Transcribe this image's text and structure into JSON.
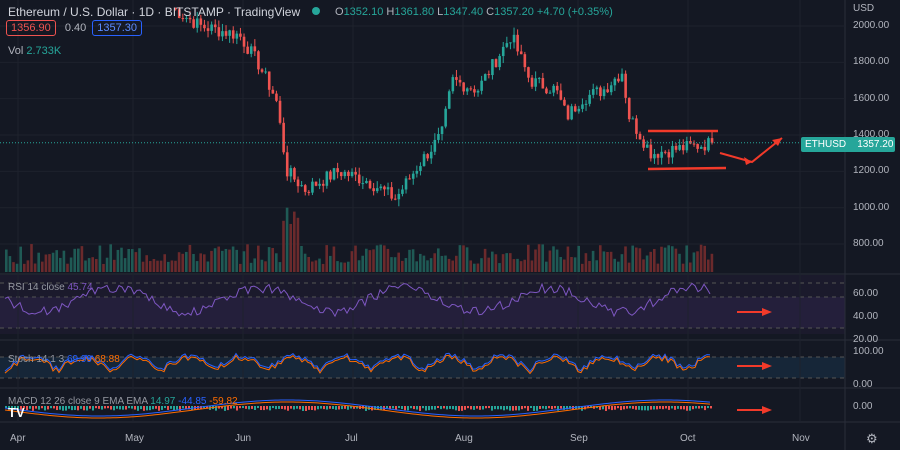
{
  "header": {
    "symbol": "Ethereum / U.S. Dollar",
    "interval": "1D",
    "exchange": "BITSTAMP",
    "source": "TradingView",
    "o_label": "O",
    "o": "1352.10",
    "h_label": "H",
    "h": "1361.80",
    "l_label": "L",
    "l": "1347.40",
    "c_label": "C",
    "c": "1357.20",
    "change": "+4.70 (+0.35%)",
    "bid": "1356.90",
    "spread": "0.40",
    "ask": "1357.30",
    "vol_label": "Vol",
    "vol": "2.733K"
  },
  "colors": {
    "up": "#26a69a",
    "down": "#ef5350",
    "rsi": "#7e57c2",
    "stoch_k": "#2962ff",
    "stoch_d": "#ff6d00",
    "annotation": "#f23a2a"
  },
  "price_axis": {
    "currency": "USD",
    "ticks": [
      "2000.00",
      "1800.00",
      "1600.00",
      "1400.00",
      "1200.00",
      "1000.00",
      "800.00"
    ],
    "last_label": "ETHUSD",
    "last_price": "1357.20"
  },
  "rsi": {
    "label": "RSI 14 close",
    "value": "45.74",
    "ticks": [
      "60.00",
      "40.00",
      "20.00"
    ]
  },
  "stoch": {
    "label": "Stoch 14 1 3",
    "k": "69.99",
    "d": "68.88",
    "ticks": [
      "100.00",
      "0.00"
    ]
  },
  "macd": {
    "label": "MACD 12 26 close 9 EMA EMA",
    "hist": "14.97",
    "macd": "-44.85",
    "signal": "-59.82",
    "ticks": [
      "0.00"
    ]
  },
  "time_axis": [
    "Apr",
    "May",
    "Jun",
    "Jul",
    "Aug",
    "Sep",
    "Oct",
    "Nov"
  ],
  "chart_data": {
    "type": "candlestick",
    "title": "Ethereum / U.S. Dollar 1D BITSTAMP",
    "ylim": [
      700,
      2050
    ],
    "key_closes": [
      [
        "May 12",
        2100
      ],
      [
        "May 20",
        2000
      ],
      [
        "May 31",
        1950
      ],
      [
        "Jun 5",
        1800
      ],
      [
        "Jun 10",
        1600
      ],
      [
        "Jun 13",
        1200
      ],
      [
        "Jun 18",
        1100
      ],
      [
        "Jun 27",
        1200
      ],
      [
        "Jul 5",
        1150
      ],
      [
        "Jul 13",
        1050
      ],
      [
        "Jul 20",
        1250
      ],
      [
        "Jul 26",
        1400
      ],
      [
        "Jul 29",
        1700
      ],
      [
        "Aug 5",
        1650
      ],
      [
        "Aug 14",
        1950
      ],
      [
        "Aug 19",
        1700
      ],
      [
        "Aug 26",
        1650
      ],
      [
        "Aug 29",
        1500
      ],
      [
        "Sep 2",
        1600
      ],
      [
        "Sep 8",
        1650
      ],
      [
        "Sep 13",
        1750
      ],
      [
        "Sep 15",
        1500
      ],
      [
        "Sep 21",
        1300
      ],
      [
        "Sep 30",
        1330
      ],
      [
        "Oct 8",
        1357
      ]
    ]
  }
}
